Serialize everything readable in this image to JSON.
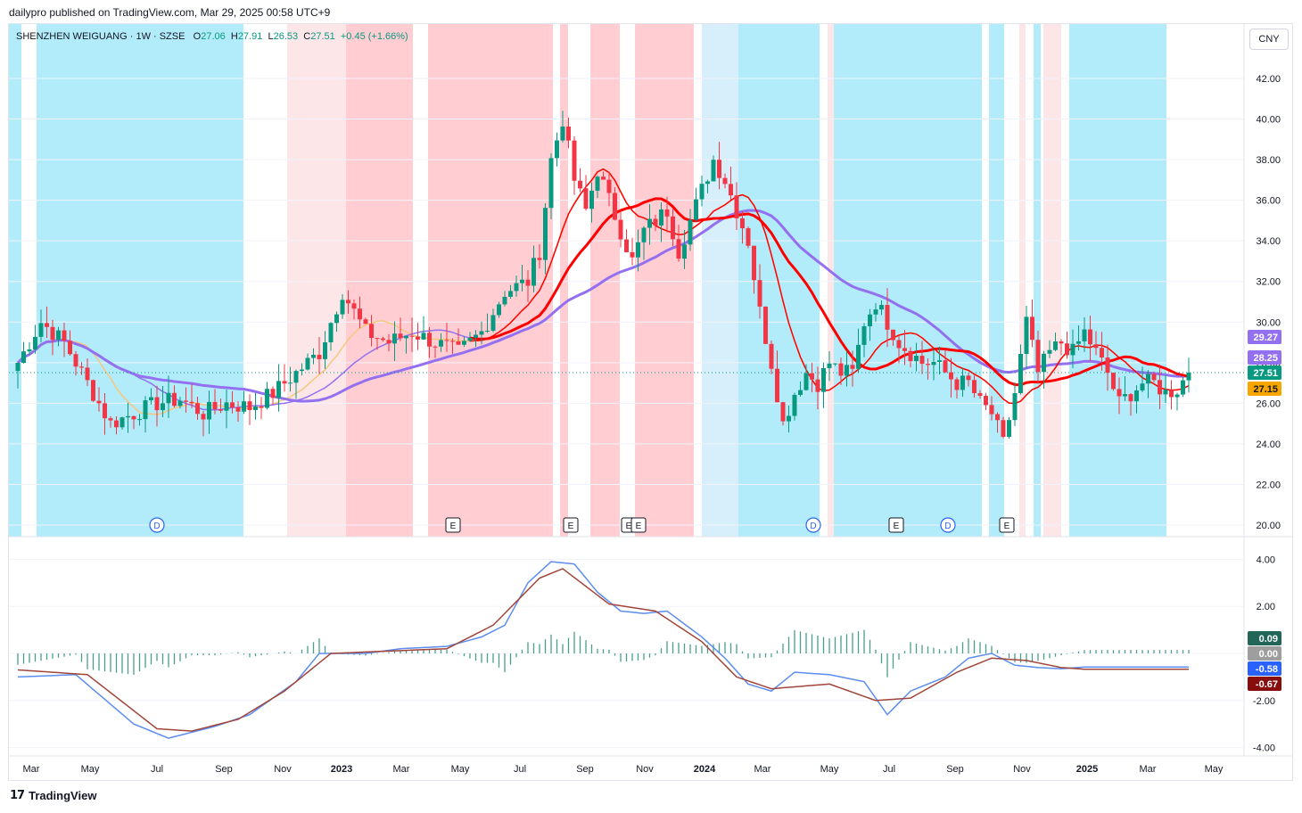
{
  "header": {
    "published": "dailypro published on TradingView.com, Mar 29, 2025 00:58 UTC+9"
  },
  "legend": {
    "symbol": "SHENZHEN WEIGUANG · 1W · SZSE",
    "o_label": "O",
    "o": "27.06",
    "h_label": "H",
    "h": "27.91",
    "l_label": "L",
    "l": "26.53",
    "c_label": "C",
    "c": "27.51",
    "chg": "+0.45 (+1.66%)"
  },
  "currency_button": "CNY",
  "footer": {
    "brand": "TradingView",
    "logo": "tradingview-logo"
  },
  "colors": {
    "up": "#089981",
    "down": "#f23645",
    "band_blue": "#b2ebf9",
    "band_lightblue": "#d6effb",
    "band_red": "#ffcdd2",
    "band_lightred": "#fde6e8",
    "ma_purple": "#9370f0",
    "ma_red": "#ff0000",
    "ma_orange": "#f7c77e",
    "macd_line": "#5b8def",
    "signal_line": "#a0453a"
  },
  "chart_data": [
    {
      "type": "candlestick",
      "panel": "price",
      "interval": "1W",
      "x_ticks": [
        "Mar",
        "May",
        "Jul",
        "Sep",
        "Nov",
        "2023",
        "Mar",
        "May",
        "Jul",
        "Sep",
        "Nov",
        "2024",
        "Mar",
        "May",
        "Jul",
        "Sep",
        "Nov",
        "2025",
        "Mar",
        "May"
      ],
      "y_ticks": [
        "42.00",
        "40.00",
        "38.00",
        "36.00",
        "34.00",
        "32.00",
        "30.00",
        "28.00",
        "26.00",
        "24.00",
        "22.00",
        "20.00"
      ],
      "ylim": [
        20,
        42
      ],
      "close_path": [
        [
          0,
          28
        ],
        [
          4,
          30
        ],
        [
          8,
          29
        ],
        [
          12,
          27
        ],
        [
          16,
          25
        ],
        [
          20,
          25.5
        ],
        [
          24,
          26
        ],
        [
          28,
          26.2
        ],
        [
          32,
          25.5
        ],
        [
          36,
          26
        ],
        [
          40,
          25.8
        ],
        [
          44,
          26.5
        ],
        [
          48,
          27.5
        ],
        [
          52,
          28.5
        ],
        [
          56,
          31.5
        ],
        [
          60,
          29.5
        ],
        [
          64,
          29
        ],
        [
          68,
          29.5
        ],
        [
          72,
          29
        ],
        [
          76,
          28.5
        ],
        [
          80,
          29.5
        ],
        [
          84,
          31.5
        ],
        [
          88,
          32
        ],
        [
          90,
          33.5
        ],
        [
          92,
          38
        ],
        [
          94,
          40
        ],
        [
          96,
          37
        ],
        [
          98,
          35.5
        ],
        [
          100,
          37.5
        ],
        [
          102,
          36
        ],
        [
          104,
          34.5
        ],
        [
          106,
          33
        ],
        [
          108,
          34.5
        ],
        [
          110,
          35
        ],
        [
          112,
          35.5
        ],
        [
          114,
          33.5
        ],
        [
          116,
          35
        ],
        [
          118,
          36.5
        ],
        [
          120,
          38
        ],
        [
          122,
          37
        ],
        [
          124,
          35.5
        ],
        [
          126,
          34
        ],
        [
          128,
          30.5
        ],
        [
          130,
          28
        ],
        [
          132,
          25
        ],
        [
          134,
          26.5
        ],
        [
          136,
          27.5
        ],
        [
          138,
          27
        ],
        [
          140,
          28
        ],
        [
          142,
          27.5
        ],
        [
          144,
          27.5
        ],
        [
          146,
          30
        ],
        [
          148,
          31
        ],
        [
          150,
          30
        ],
        [
          152,
          29
        ],
        [
          154,
          28.5
        ],
        [
          156,
          28
        ],
        [
          158,
          28
        ],
        [
          160,
          27.5
        ],
        [
          162,
          27
        ],
        [
          164,
          27
        ],
        [
          166,
          26
        ],
        [
          168,
          25.5
        ],
        [
          170,
          24
        ],
        [
          172,
          26.5
        ],
        [
          174,
          30
        ],
        [
          176,
          27.5
        ],
        [
          178,
          28.5
        ],
        [
          180,
          29
        ],
        [
          182,
          28.5
        ],
        [
          184,
          29.5
        ],
        [
          186,
          28.5
        ],
        [
          188,
          27.5
        ],
        [
          190,
          26
        ],
        [
          192,
          26.5
        ],
        [
          194,
          27
        ],
        [
          196,
          27
        ],
        [
          198,
          26.5
        ],
        [
          200,
          26.7
        ],
        [
          202,
          27.51
        ]
      ],
      "last_close": "27.51",
      "price_labels": [
        "29.27",
        "28.25",
        "27.51",
        "27.15"
      ],
      "event_markers": [
        "D",
        "E",
        "E",
        "E",
        "D",
        "E",
        "D",
        "E",
        "E"
      ]
    },
    {
      "type": "histogram+line",
      "panel": "macd",
      "y_ticks": [
        "4.00",
        "2.00",
        "0.00",
        "-2.00",
        "-4.00"
      ],
      "ylim": [
        -4.5,
        4.5
      ],
      "macd_path": [
        [
          0,
          -1
        ],
        [
          10,
          -0.9
        ],
        [
          20,
          -3
        ],
        [
          26,
          -3.6
        ],
        [
          34,
          -3.1
        ],
        [
          40,
          -2.6
        ],
        [
          48,
          -1.2
        ],
        [
          52,
          0
        ],
        [
          60,
          0
        ],
        [
          66,
          0.2
        ],
        [
          74,
          0.3
        ],
        [
          80,
          0.7
        ],
        [
          84,
          1.2
        ],
        [
          88,
          3
        ],
        [
          92,
          3.9
        ],
        [
          96,
          3.8
        ],
        [
          100,
          2.6
        ],
        [
          104,
          1.8
        ],
        [
          108,
          1.7
        ],
        [
          112,
          1.8
        ],
        [
          118,
          0.7
        ],
        [
          122,
          -0.2
        ],
        [
          126,
          -1.3
        ],
        [
          130,
          -1.6
        ],
        [
          134,
          -0.8
        ],
        [
          140,
          -0.9
        ],
        [
          146,
          -1.2
        ],
        [
          150,
          -2.6
        ],
        [
          154,
          -1.6
        ],
        [
          160,
          -1
        ],
        [
          164,
          -0.2
        ],
        [
          168,
          0
        ],
        [
          172,
          -0.5
        ],
        [
          176,
          -0.6
        ],
        [
          180,
          -0.65
        ],
        [
          184,
          -0.58
        ]
      ],
      "signal_path": [
        [
          0,
          -0.7
        ],
        [
          12,
          -0.9
        ],
        [
          24,
          -3.2
        ],
        [
          30,
          -3.3
        ],
        [
          38,
          -2.8
        ],
        [
          46,
          -1.6
        ],
        [
          54,
          0
        ],
        [
          64,
          0.1
        ],
        [
          74,
          0.2
        ],
        [
          82,
          1.2
        ],
        [
          90,
          3.2
        ],
        [
          94,
          3.6
        ],
        [
          102,
          2.1
        ],
        [
          110,
          1.8
        ],
        [
          118,
          0.5
        ],
        [
          124,
          -1
        ],
        [
          130,
          -1.5
        ],
        [
          140,
          -1.3
        ],
        [
          148,
          -2
        ],
        [
          154,
          -1.9
        ],
        [
          162,
          -0.8
        ],
        [
          168,
          -0.2
        ],
        [
          174,
          -0.3
        ],
        [
          180,
          -0.6
        ],
        [
          184,
          -0.67
        ]
      ],
      "values_labels": [
        "0.09",
        "0.00",
        "-0.58",
        "-0.67"
      ]
    }
  ]
}
